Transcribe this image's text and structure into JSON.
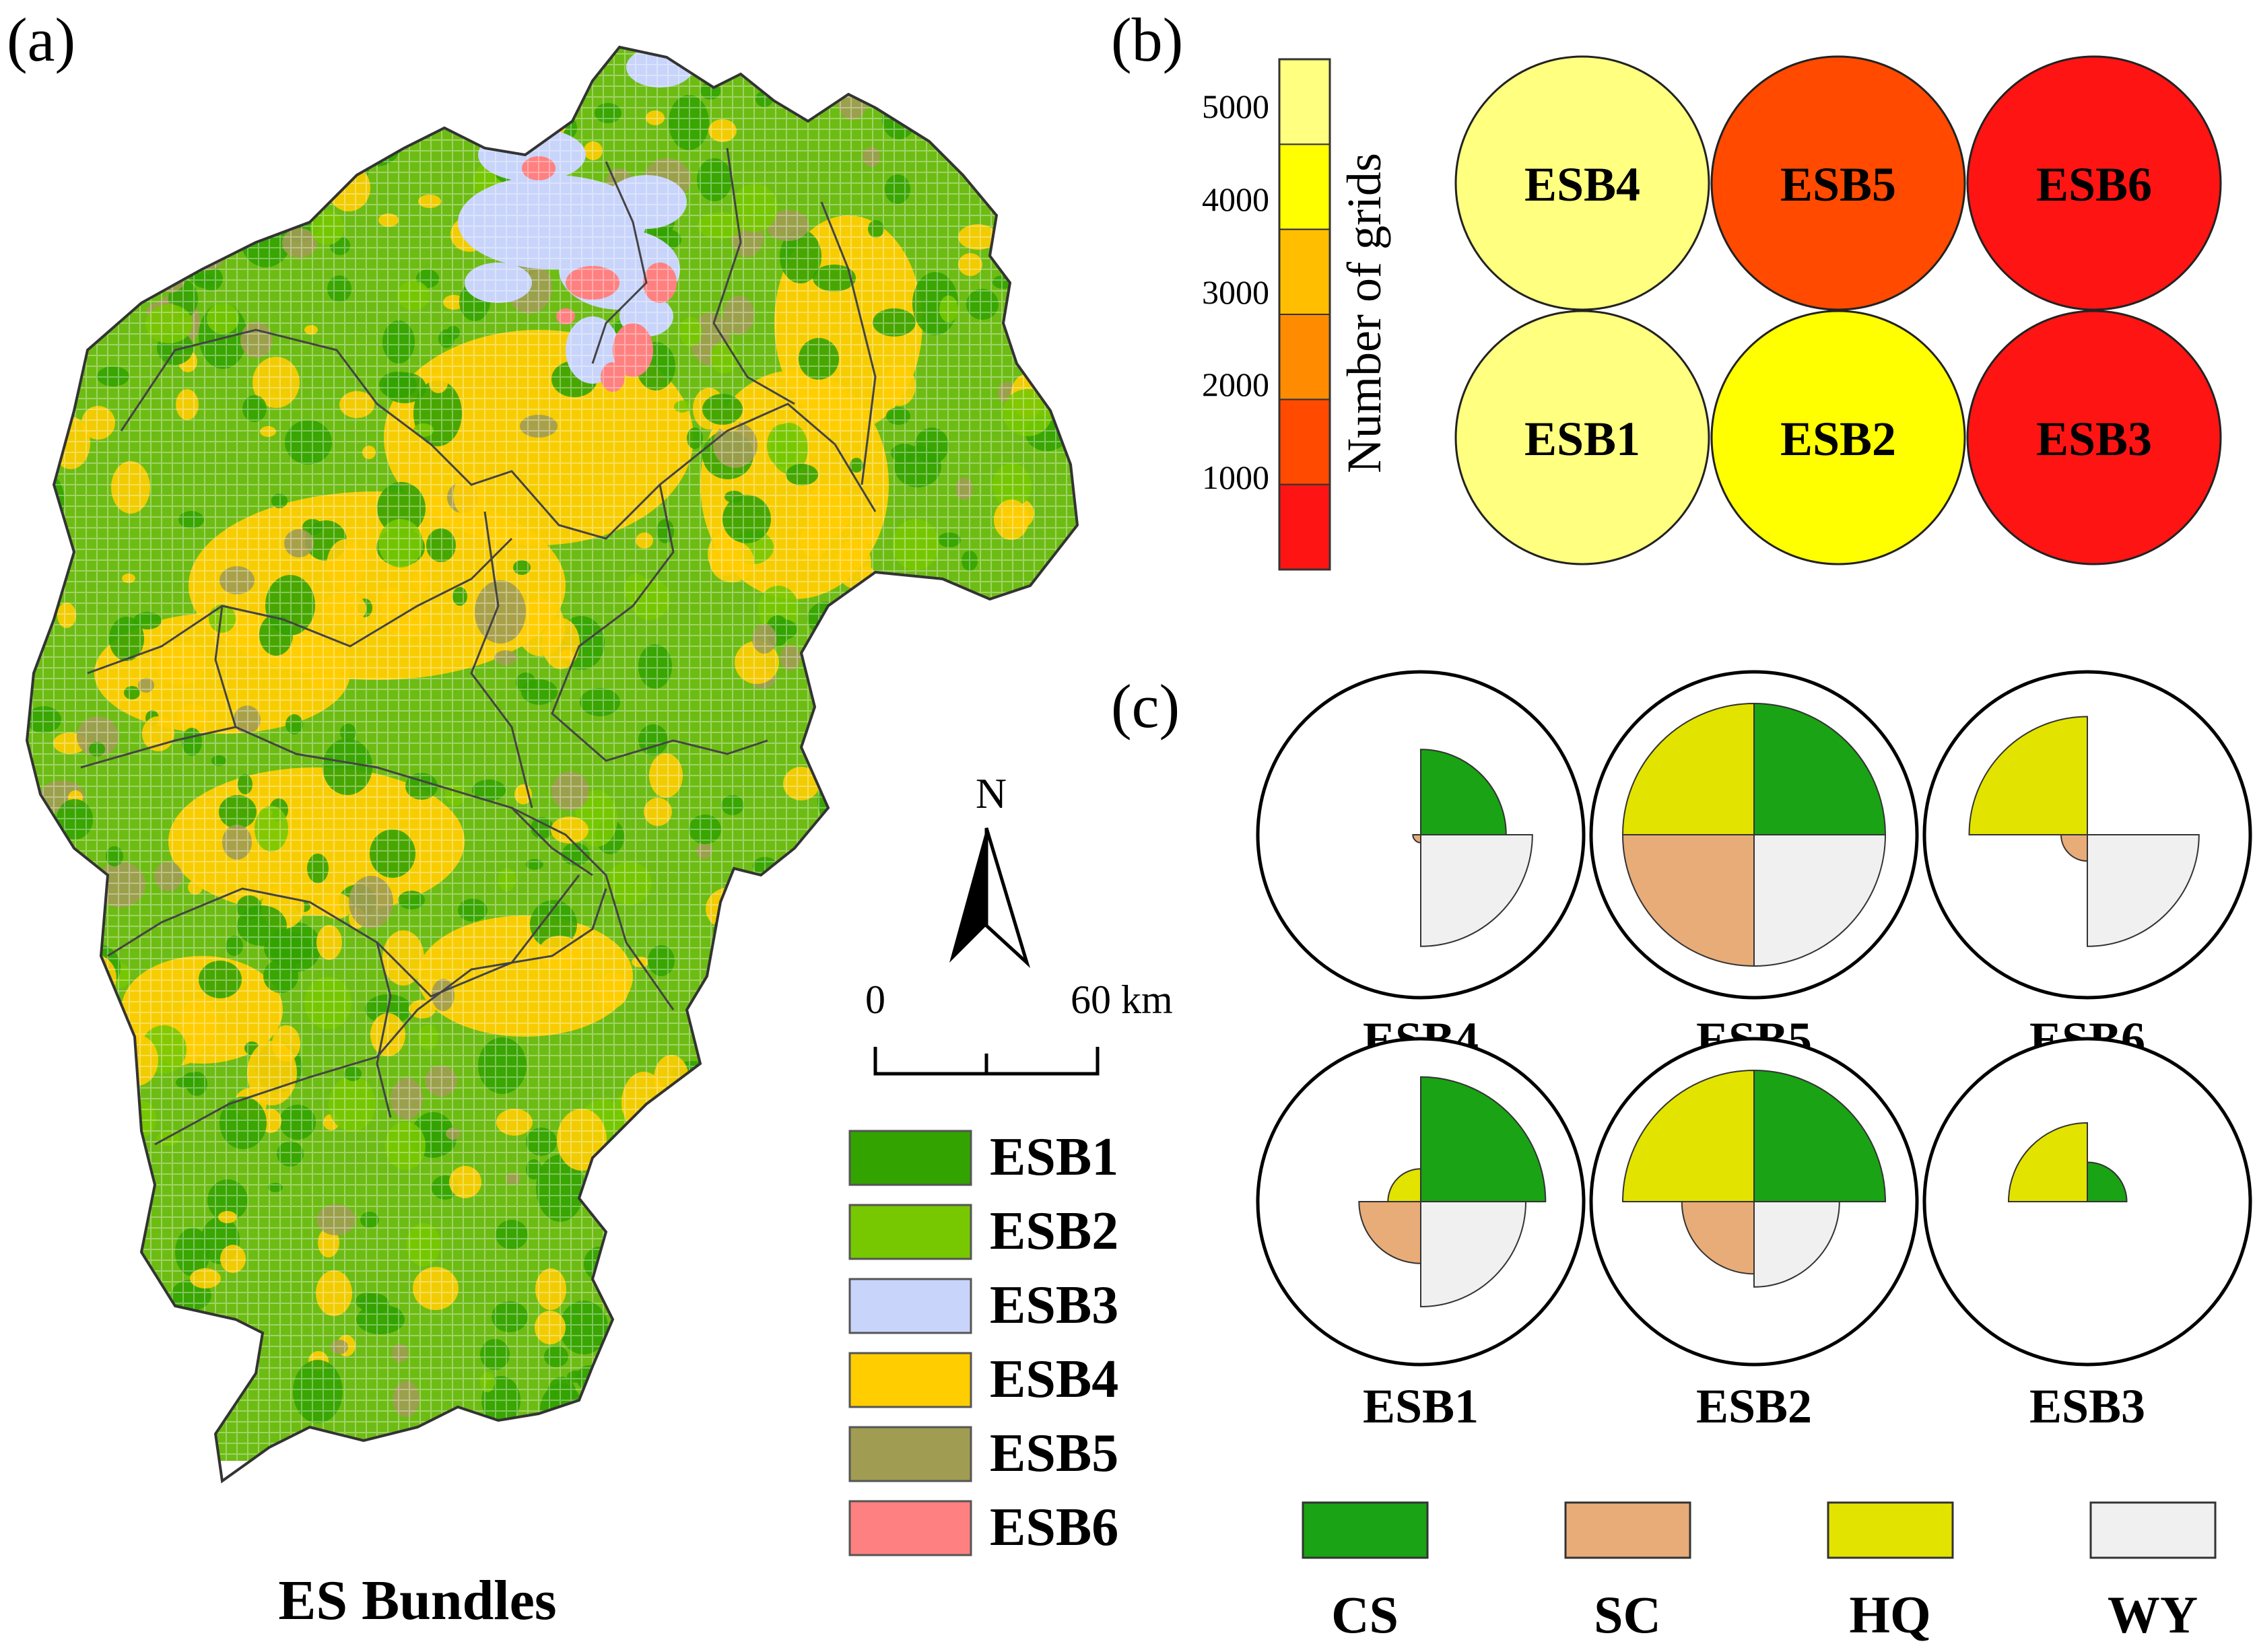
{
  "panels": {
    "a": {
      "label": "(a)",
      "title": "ES Bundles",
      "north": "N",
      "scalebar": {
        "start": "0",
        "end": "60 km"
      },
      "legend": [
        {
          "label": "ESB1",
          "color": "#33a300"
        },
        {
          "label": "ESB2",
          "color": "#77c800"
        },
        {
          "label": "ESB3",
          "color": "#c8d4fa"
        },
        {
          "label": "ESB4",
          "color": "#ffcd00"
        },
        {
          "label": "ESB5",
          "color": "#a09c52"
        },
        {
          "label": "ESB6",
          "color": "#ff8080"
        }
      ]
    },
    "b": {
      "label": "(b)",
      "colorbar_title": "Number of grids",
      "colorbar_ticks": [
        "1000",
        "2000",
        "3000",
        "4000",
        "5000"
      ],
      "colorbar_colors": [
        "#ff1414",
        "#ff4a00",
        "#ff8c00",
        "#ffbf00",
        "#ffff00",
        "#ffff80"
      ]
    },
    "c": {
      "label": "(c)",
      "services": [
        {
          "label": "CS",
          "color": "#1aa314"
        },
        {
          "label": "SC",
          "color": "#e8ac78"
        },
        {
          "label": "HQ",
          "color": "#e3e300"
        },
        {
          "label": "WY",
          "color": "#f0f0f0"
        }
      ]
    }
  },
  "chart_data": [
    {
      "type": "heatmap",
      "title": "",
      "rows": [
        {
          "bundles": [
            "ESB4",
            "ESB5",
            "ESB6"
          ],
          "counts": [
            5400,
            1400,
            700
          ],
          "colors": [
            "#ffff80",
            "#ff4a00",
            "#ff1414"
          ]
        },
        {
          "bundles": [
            "ESB1",
            "ESB2",
            "ESB3"
          ],
          "counts": [
            5300,
            4700,
            500
          ],
          "colors": [
            "#ffff80",
            "#ffff00",
            "#ff1414"
          ]
        }
      ],
      "colorbar_range": [
        0,
        5500
      ]
    },
    {
      "type": "pie",
      "title": "",
      "note": "rose diagrams, relative supply per quadrant",
      "quadrant_order": [
        "CS",
        "WY",
        "SC",
        "HQ"
      ],
      "bundles": [
        {
          "name": "ESB4",
          "values": {
            "CS": 0.65,
            "WY": 0.85,
            "SC": 0.06,
            "HQ": 0.0
          }
        },
        {
          "name": "ESB5",
          "values": {
            "CS": 1.0,
            "WY": 1.0,
            "SC": 1.0,
            "HQ": 1.0
          }
        },
        {
          "name": "ESB6",
          "values": {
            "CS": 0.0,
            "WY": 0.85,
            "SC": 0.2,
            "HQ": 0.9
          }
        },
        {
          "name": "ESB1",
          "values": {
            "CS": 0.95,
            "WY": 0.8,
            "SC": 0.47,
            "HQ": 0.25
          }
        },
        {
          "name": "ESB2",
          "values": {
            "CS": 1.0,
            "WY": 0.65,
            "SC": 0.55,
            "HQ": 1.0
          }
        },
        {
          "name": "ESB3",
          "values": {
            "CS": 0.3,
            "WY": 0.0,
            "SC": 0.0,
            "HQ": 0.6
          }
        }
      ]
    }
  ]
}
